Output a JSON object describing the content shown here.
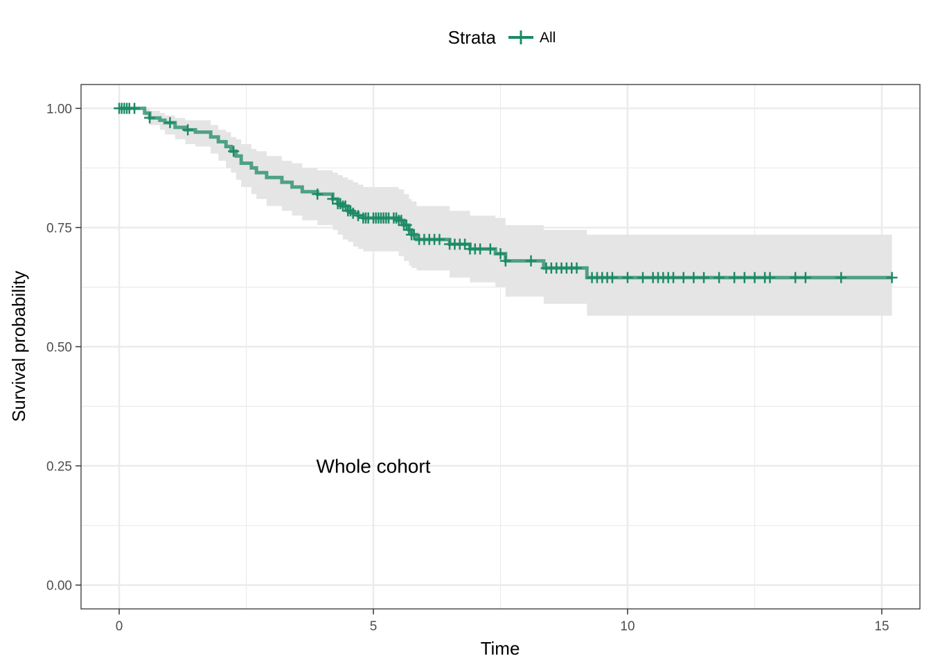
{
  "chart_data": {
    "type": "line",
    "subtype": "kaplan-meier",
    "xlabel": "Time",
    "ylabel": "Survival probability",
    "xlim": [
      -0.75,
      15.75
    ],
    "ylim": [
      -0.05,
      1.05
    ],
    "x_ticks": [
      0,
      5,
      10,
      15
    ],
    "x_tick_labels": [
      "0",
      "5",
      "10",
      "15"
    ],
    "y_ticks": [
      0.0,
      0.25,
      0.5,
      0.75,
      1.0
    ],
    "y_tick_labels": [
      "0.00",
      "0.25",
      "0.50",
      "0.75",
      "1.00"
    ],
    "grid": true,
    "legend": {
      "title": "Strata",
      "position": "top",
      "entries": [
        "All"
      ]
    },
    "annotations": [
      {
        "text": "Whole cohort",
        "x": 5.0,
        "y": 0.25
      }
    ],
    "colors": {
      "series": "#1b8a64",
      "ci_band": "#e5e5e5",
      "grid": "#ebebeb",
      "frame": "#333333"
    },
    "series": [
      {
        "name": "All",
        "step_times": [
          0,
          0.5,
          0.6,
          0.8,
          0.9,
          1.1,
          1.3,
          1.5,
          1.8,
          1.95,
          2.1,
          2.2,
          2.3,
          2.4,
          2.6,
          2.7,
          2.9,
          3.2,
          3.4,
          3.6,
          3.9,
          4.2,
          4.3,
          4.4,
          4.5,
          4.6,
          4.7,
          4.8,
          5.5,
          5.6,
          5.7,
          5.75,
          5.85,
          6.5,
          6.9,
          7.4,
          7.6,
          8.35,
          9.2,
          15.2
        ],
        "survival": [
          1.0,
          0.99,
          0.98,
          0.975,
          0.97,
          0.96,
          0.955,
          0.95,
          0.94,
          0.93,
          0.92,
          0.91,
          0.9,
          0.885,
          0.875,
          0.865,
          0.855,
          0.845,
          0.835,
          0.825,
          0.82,
          0.81,
          0.8,
          0.795,
          0.785,
          0.78,
          0.775,
          0.77,
          0.765,
          0.755,
          0.745,
          0.735,
          0.725,
          0.715,
          0.705,
          0.695,
          0.68,
          0.665,
          0.645,
          0.645
        ],
        "ci_lower": [
          1.0,
          0.98,
          0.965,
          0.955,
          0.945,
          0.935,
          0.925,
          0.92,
          0.905,
          0.89,
          0.875,
          0.865,
          0.85,
          0.835,
          0.82,
          0.81,
          0.795,
          0.785,
          0.775,
          0.765,
          0.755,
          0.745,
          0.735,
          0.725,
          0.72,
          0.71,
          0.705,
          0.7,
          0.69,
          0.68,
          0.67,
          0.665,
          0.66,
          0.645,
          0.635,
          0.625,
          0.605,
          0.59,
          0.565,
          0.565
        ],
        "ci_upper": [
          1.0,
          1.0,
          0.995,
          0.99,
          0.985,
          0.98,
          0.975,
          0.975,
          0.965,
          0.955,
          0.95,
          0.94,
          0.935,
          0.925,
          0.915,
          0.91,
          0.9,
          0.89,
          0.885,
          0.875,
          0.87,
          0.865,
          0.86,
          0.855,
          0.85,
          0.845,
          0.84,
          0.835,
          0.83,
          0.82,
          0.81,
          0.805,
          0.795,
          0.785,
          0.775,
          0.77,
          0.755,
          0.745,
          0.735,
          0.735
        ],
        "censor_times": [
          0.0,
          0.05,
          0.1,
          0.15,
          0.2,
          0.3,
          0.6,
          1.0,
          1.35,
          2.25,
          3.9,
          4.2,
          4.3,
          4.35,
          4.4,
          4.45,
          4.5,
          4.55,
          4.6,
          4.7,
          4.8,
          4.85,
          4.9,
          5.0,
          5.05,
          5.1,
          5.15,
          5.2,
          5.25,
          5.3,
          5.4,
          5.45,
          5.5,
          5.55,
          5.6,
          5.65,
          5.7,
          5.75,
          5.8,
          5.9,
          6.0,
          6.1,
          6.2,
          6.3,
          6.5,
          6.6,
          6.7,
          6.8,
          6.9,
          7.0,
          7.1,
          7.3,
          7.5,
          7.6,
          8.1,
          8.4,
          8.5,
          8.6,
          8.7,
          8.8,
          8.9,
          9.0,
          9.3,
          9.4,
          9.5,
          9.6,
          9.7,
          10.0,
          10.3,
          10.5,
          10.6,
          10.7,
          10.8,
          10.9,
          11.1,
          11.3,
          11.5,
          11.8,
          12.1,
          12.3,
          12.5,
          12.7,
          12.8,
          13.3,
          13.5,
          14.2,
          15.2
        ]
      }
    ]
  }
}
